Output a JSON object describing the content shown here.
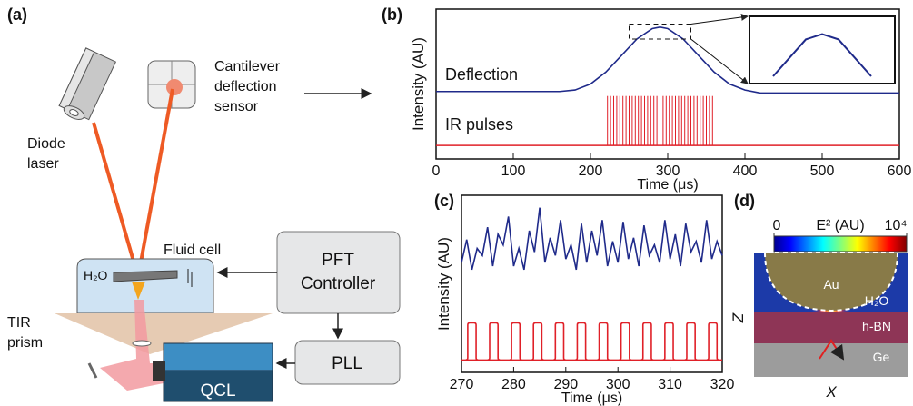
{
  "diagram": {
    "panel_label": "(a)",
    "labels": {
      "laser": [
        "Diode",
        "laser"
      ],
      "sensor": [
        "Cantilever",
        "deflection",
        "sensor"
      ],
      "fluid_cell": "Fluid cell",
      "water": "H₂O",
      "prism": [
        "TIR",
        "prism"
      ],
      "controller": [
        "PFT",
        "Controller"
      ],
      "pll": "PLL",
      "qcl": "QCL"
    }
  },
  "chart_data": [
    {
      "type": "line",
      "panel_label": "(b)",
      "xlabel": "Time (μs)",
      "ylabel": "Intensity (AU)",
      "xlim": [
        0,
        600
      ],
      "xticks": [
        0,
        100,
        200,
        300,
        400,
        500,
        600
      ],
      "ylim": [
        0,
        1
      ],
      "inset_xlim": [
        250,
        330
      ],
      "inset_ylim": [
        0.8,
        0.9
      ],
      "series": [
        {
          "name": "Deflection",
          "color": "#1f2a8a",
          "x": [
            0,
            20,
            40,
            60,
            80,
            100,
            120,
            140,
            160,
            180,
            200,
            220,
            240,
            260,
            280,
            290,
            300,
            320,
            340,
            360,
            380,
            400,
            420,
            440,
            460,
            480,
            500,
            520,
            540,
            560,
            580,
            600
          ],
          "values": [
            0.45,
            0.45,
            0.45,
            0.45,
            0.45,
            0.45,
            0.45,
            0.45,
            0.45,
            0.46,
            0.5,
            0.58,
            0.69,
            0.8,
            0.87,
            0.88,
            0.87,
            0.8,
            0.69,
            0.58,
            0.5,
            0.46,
            0.44,
            0.44,
            0.44,
            0.44,
            0.44,
            0.44,
            0.44,
            0.44,
            0.44,
            0.44
          ]
        },
        {
          "name": "IR pulses",
          "color": "#e02028",
          "style": "pulses",
          "baseline": 0.09,
          "x": [
            222,
            226,
            230,
            234,
            238,
            242,
            246,
            250,
            254,
            258,
            262,
            266,
            270,
            274,
            278,
            282,
            286,
            290,
            294,
            298,
            302,
            306,
            310,
            314,
            318,
            322,
            326,
            330,
            334,
            338,
            342,
            346,
            350,
            354,
            358
          ],
          "values": [
            0.42,
            0.42,
            0.42,
            0.42,
            0.42,
            0.42,
            0.42,
            0.42,
            0.42,
            0.42,
            0.42,
            0.42,
            0.42,
            0.42,
            0.42,
            0.42,
            0.42,
            0.42,
            0.42,
            0.42,
            0.42,
            0.42,
            0.42,
            0.42,
            0.42,
            0.42,
            0.42,
            0.42,
            0.42,
            0.42,
            0.42,
            0.42,
            0.42,
            0.42,
            0.42
          ]
        }
      ]
    },
    {
      "type": "line",
      "panel_label": "(c)",
      "xlabel": "Time (μs)",
      "ylabel": "Intensity (AU)",
      "xlim": [
        270,
        320
      ],
      "xticks": [
        270,
        280,
        290,
        300,
        310,
        320
      ],
      "ylim": [
        0,
        1
      ],
      "series": [
        {
          "color": "#1f2a8a",
          "x": [
            270,
            271,
            272,
            273,
            274,
            275,
            276,
            277,
            278,
            279,
            280,
            281,
            282,
            283,
            284,
            285,
            286,
            287,
            288,
            289,
            290,
            291,
            292,
            293,
            294,
            295,
            296,
            297,
            298,
            299,
            300,
            301,
            302,
            303,
            304,
            305,
            306,
            307,
            308,
            309,
            310,
            311,
            312,
            313,
            314,
            315,
            316,
            317,
            318,
            319,
            320
          ],
          "values": [
            0.62,
            0.75,
            0.58,
            0.7,
            0.66,
            0.82,
            0.6,
            0.78,
            0.72,
            0.88,
            0.6,
            0.7,
            0.58,
            0.8,
            0.68,
            0.93,
            0.62,
            0.76,
            0.66,
            0.86,
            0.64,
            0.72,
            0.58,
            0.84,
            0.62,
            0.8,
            0.66,
            0.86,
            0.6,
            0.74,
            0.62,
            0.85,
            0.64,
            0.76,
            0.6,
            0.83,
            0.66,
            0.72,
            0.62,
            0.86,
            0.64,
            0.78,
            0.6,
            0.84,
            0.68,
            0.74,
            0.62,
            0.86,
            0.64,
            0.74,
            0.66
          ]
        },
        {
          "color": "#e02028",
          "style": "pulses",
          "baseline": 0.07,
          "width": 1.6,
          "x": [
            272,
            276.2,
            280.4,
            284.6,
            288.8,
            293,
            297.2,
            301.4,
            305.6,
            309.8,
            314,
            318.2
          ],
          "values": [
            0.28,
            0.28,
            0.28,
            0.28,
            0.28,
            0.28,
            0.28,
            0.28,
            0.28,
            0.28,
            0.28,
            0.28
          ]
        }
      ]
    },
    {
      "type": "heatmap",
      "panel_label": "(d)",
      "colorbar_label": "E² (AU)",
      "clim": [
        0,
        10000
      ],
      "cticks": [
        0,
        {
          "value": 10000,
          "label": "10⁴"
        }
      ],
      "xlabel": "X",
      "ylabel": "Z",
      "labels": [
        "Au",
        "H₂O",
        "h-BN",
        "Ge"
      ]
    }
  ]
}
